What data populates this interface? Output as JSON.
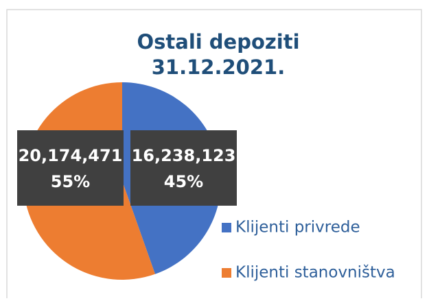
{
  "chart_data": {
    "type": "pie",
    "title": [
      "Ostali depoziti",
      "31.12.2021."
    ],
    "categories": [
      "Klijenti privrede",
      "Klijenti stanovništva"
    ],
    "values": [
      16238123,
      20174471
    ],
    "value_labels": [
      "16,238,123",
      "20,174,471"
    ],
    "percentages": [
      45,
      55
    ],
    "percentage_labels": [
      "45%",
      "55%"
    ],
    "colors": [
      "#4472c4",
      "#ed7d31"
    ],
    "legend": "right"
  }
}
